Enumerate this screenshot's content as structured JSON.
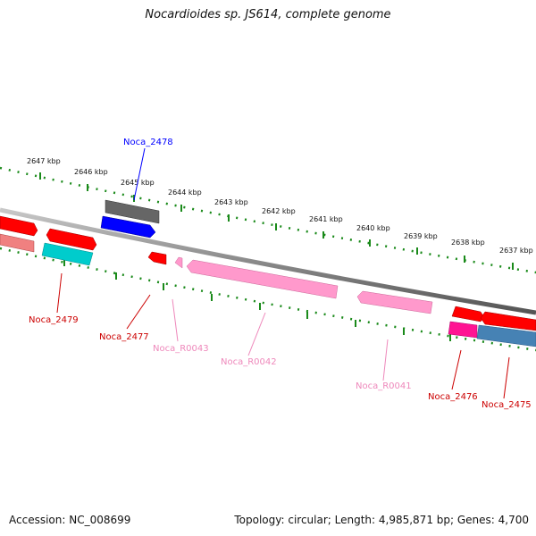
{
  "title": "Nocardioides sp. JS614, complete genome",
  "footer": {
    "accession": "Accession: NC_008699",
    "topology": "Topology: circular; Length: 4,985,871 bp; Genes: 4,700"
  },
  "colors": {
    "backbone": "#8a8a8a",
    "ticks": "#1a8a1a",
    "red_gene": "#ff0000",
    "pink_rna": "#ff99cc",
    "magenta_gene": "#ff1493",
    "cyan_gene": "#00cccc",
    "blue_gene": "#0000ff",
    "grey_gene": "#666666",
    "steelblue_gene": "#4682b4",
    "salmon_gene": "#f08080"
  },
  "scale": {
    "unit": "kbp",
    "labels": [
      "2647 kbp",
      "2646 kbp",
      "2645 kbp",
      "2644 kbp",
      "2643 kbp",
      "2642 kbp",
      "2641 kbp",
      "2640 kbp",
      "2639 kbp",
      "2638 kbp",
      "2637 kbp"
    ]
  },
  "features": [
    {
      "label": "Noca_2478",
      "color": "#0000ff"
    },
    {
      "label": "Noca_2479",
      "color": "#cc0000"
    },
    {
      "label": "Noca_2477",
      "color": "#cc0000"
    },
    {
      "label": "Noca_R0043",
      "color": "#ee88bb"
    },
    {
      "label": "Noca_R0042",
      "color": "#ee88bb"
    },
    {
      "label": "Noca_R0041",
      "color": "#ee88bb"
    },
    {
      "label": "Noca_2476",
      "color": "#cc0000"
    },
    {
      "label": "Noca_2475",
      "color": "#cc0000"
    }
  ]
}
